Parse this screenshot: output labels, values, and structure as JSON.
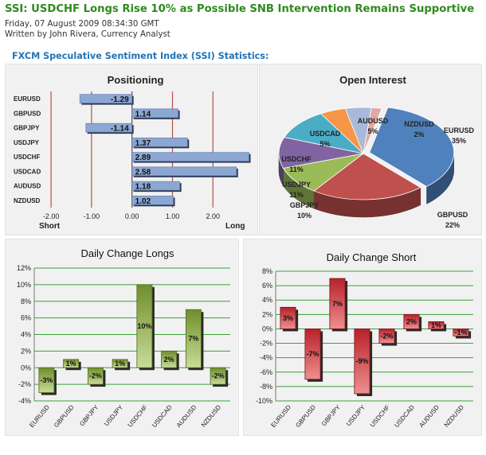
{
  "header": {
    "title": "SSI: USDCHF Longs Rise 10% as Possible SNB Intervention Remains Supportive",
    "date": "Friday, 07 August 2009 08:34:30 GMT",
    "author": "Written by John Rivera, Currency Analyst"
  },
  "section_title": "FXCM Speculative Sentiment Index (SSI) Statistics:",
  "colors": {
    "title_green": "#2f8a1e",
    "section_blue": "#2373b5",
    "bar_blue": "#7c9ccb",
    "bar_green": "#7f9d3c",
    "bar_red": "#c2272d"
  },
  "chart_data": [
    {
      "type": "bar",
      "orientation": "horizontal",
      "title": "Positioning",
      "categories": [
        "EURUSD",
        "GBPUSD",
        "GBPJPY",
        "USDJPY",
        "USDCHF",
        "USDCAD",
        "AUDUSD",
        "NZDUSD"
      ],
      "values": [
        -1.29,
        1.14,
        -1.14,
        1.37,
        2.89,
        2.58,
        1.18,
        1.02
      ],
      "value_labels": [
        "-1.29",
        "1.14",
        "-1.14",
        "1.37",
        "2.89",
        "2.58",
        "1.18",
        "1.02"
      ],
      "x_ticks": [
        "-2.00",
        "-1.00",
        "0.00",
        "1.00",
        "2.00"
      ],
      "x_tick_values": [
        -2,
        -1,
        0,
        1,
        2
      ],
      "xlim": [
        -2.1,
        2.9
      ],
      "xlabel_left": "Short",
      "xlabel_right": "Long"
    },
    {
      "type": "pie",
      "title": "Open Interest",
      "slices": [
        {
          "label": "EURUSD",
          "pct": "35%",
          "value": 35,
          "color": "#4f81bd"
        },
        {
          "label": "GBPUSD",
          "pct": "22%",
          "value": 22,
          "color": "#c0504d"
        },
        {
          "label": "GBPJPY",
          "pct": "10%",
          "value": 10,
          "color": "#9bbb59"
        },
        {
          "label": "USDJPY",
          "pct": "11%",
          "value": 11,
          "color": "#8064a2"
        },
        {
          "label": "USDCHF",
          "pct": "11%",
          "value": 11,
          "color": "#4bacc6"
        },
        {
          "label": "USDCAD",
          "pct": "5%",
          "value": 5,
          "color": "#f79646"
        },
        {
          "label": "AUDUSD",
          "pct": "5%",
          "value": 5,
          "color": "#a9b9d9"
        },
        {
          "label": "NZDUSD",
          "pct": "2%",
          "value": 2,
          "color": "#e3a7a6"
        }
      ]
    },
    {
      "type": "bar",
      "title": "Daily Change Longs",
      "categories": [
        "EURUSD",
        "GBPUSD",
        "GBPJPY",
        "USDJPY",
        "USDCHF",
        "USDCAD",
        "AUDUSD",
        "NZDUSD"
      ],
      "values": [
        -3,
        1,
        -2,
        1,
        10,
        2,
        7,
        -2
      ],
      "value_labels": [
        "-3%",
        "1%",
        "-2%",
        "1%",
        "10%",
        "2%",
        "7%",
        "-2%"
      ],
      "y_ticks": [
        "12%",
        "10%",
        "8%",
        "6%",
        "4%",
        "2%",
        "0%",
        "-2%",
        "-4%"
      ],
      "y_tick_values": [
        12,
        10,
        8,
        6,
        4,
        2,
        0,
        -2,
        -4
      ],
      "ylim": [
        -4,
        12
      ]
    },
    {
      "type": "bar",
      "title": "Daily Change Short",
      "categories": [
        "EURUSD",
        "GBPUSD",
        "GBPJPY",
        "USDJPY",
        "USDCHF",
        "USDCAD",
        "AUDUSD",
        "NZDUSD"
      ],
      "values": [
        3,
        -7,
        7,
        -9,
        -2,
        2,
        1,
        -1
      ],
      "value_labels": [
        "3%",
        "-7%",
        "7%",
        "-9%",
        "-2%",
        "2%",
        "1%",
        "-1%"
      ],
      "y_ticks": [
        "8%",
        "6%",
        "4%",
        "2%",
        "0%",
        "-2%",
        "-4%",
        "-6%",
        "-8%",
        "-10%"
      ],
      "y_tick_values": [
        8,
        6,
        4,
        2,
        0,
        -2,
        -4,
        -6,
        -8,
        -10
      ],
      "ylim": [
        -10,
        8
      ]
    }
  ]
}
